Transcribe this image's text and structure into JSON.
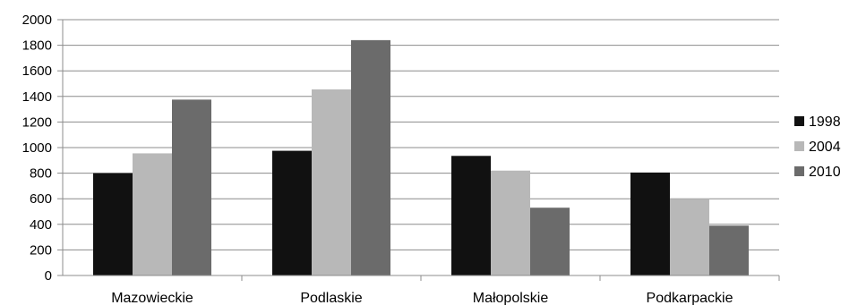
{
  "chart_data": {
    "type": "bar",
    "categories": [
      "Mazowieckie",
      "Podlaskie",
      "Małopolskie",
      "Podkarpackie"
    ],
    "series": [
      {
        "name": "1998",
        "color": "#111111",
        "values": [
          800,
          975,
          935,
          805
        ]
      },
      {
        "name": "2004",
        "color": "#b8b8b8",
        "values": [
          955,
          1455,
          820,
          600
        ]
      },
      {
        "name": "2010",
        "color": "#6b6b6b",
        "values": [
          1375,
          1840,
          530,
          390
        ]
      }
    ],
    "yticks": [
      "0",
      "200",
      "400",
      "600",
      "800",
      "1000",
      "1200",
      "1400",
      "1600",
      "1800",
      "2000"
    ],
    "ylim": [
      0,
      2000
    ],
    "grid": true,
    "legend_position": "right"
  }
}
